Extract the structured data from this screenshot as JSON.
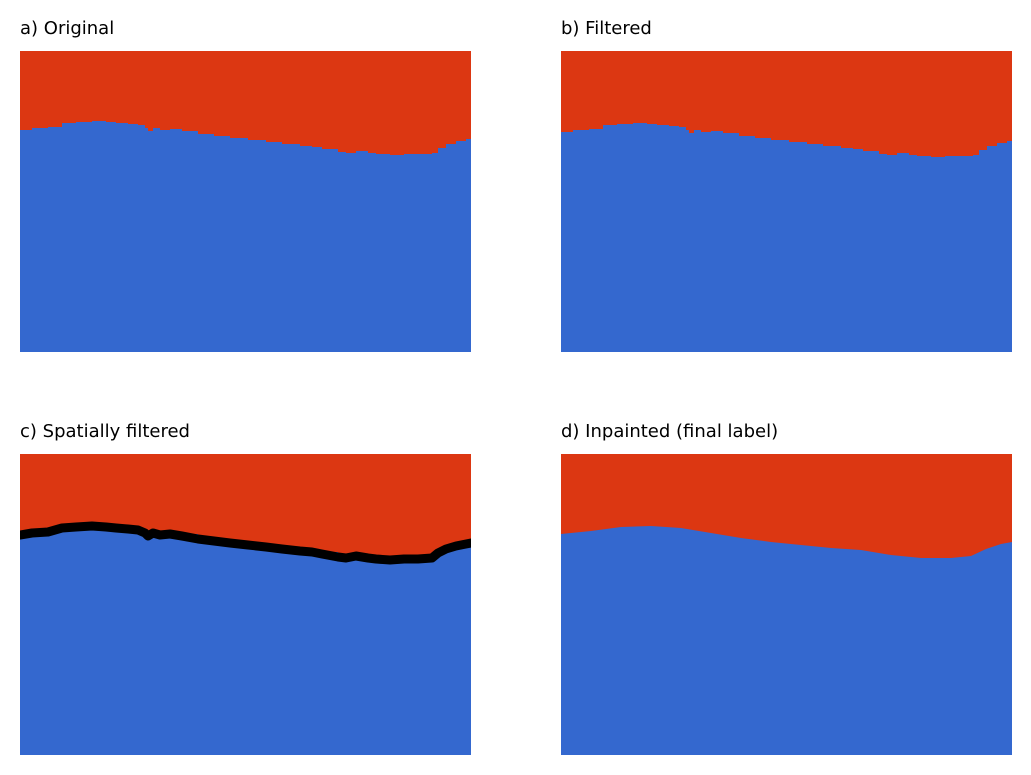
{
  "colors": {
    "top_region": "#dc3712",
    "bottom_region": "#3468cf",
    "boundary": "#000000",
    "background": "#ffffff"
  },
  "panels": [
    {
      "title": "a) Original",
      "has_boundary": false,
      "smooth": false
    },
    {
      "title": "b) Filtered",
      "has_boundary": false,
      "smooth": false
    },
    {
      "title": "c) Spatially filtered",
      "has_boundary": true,
      "smooth": false
    },
    {
      "title": "d) Inpainted (final label)",
      "has_boundary": false,
      "smooth": true
    }
  ]
}
